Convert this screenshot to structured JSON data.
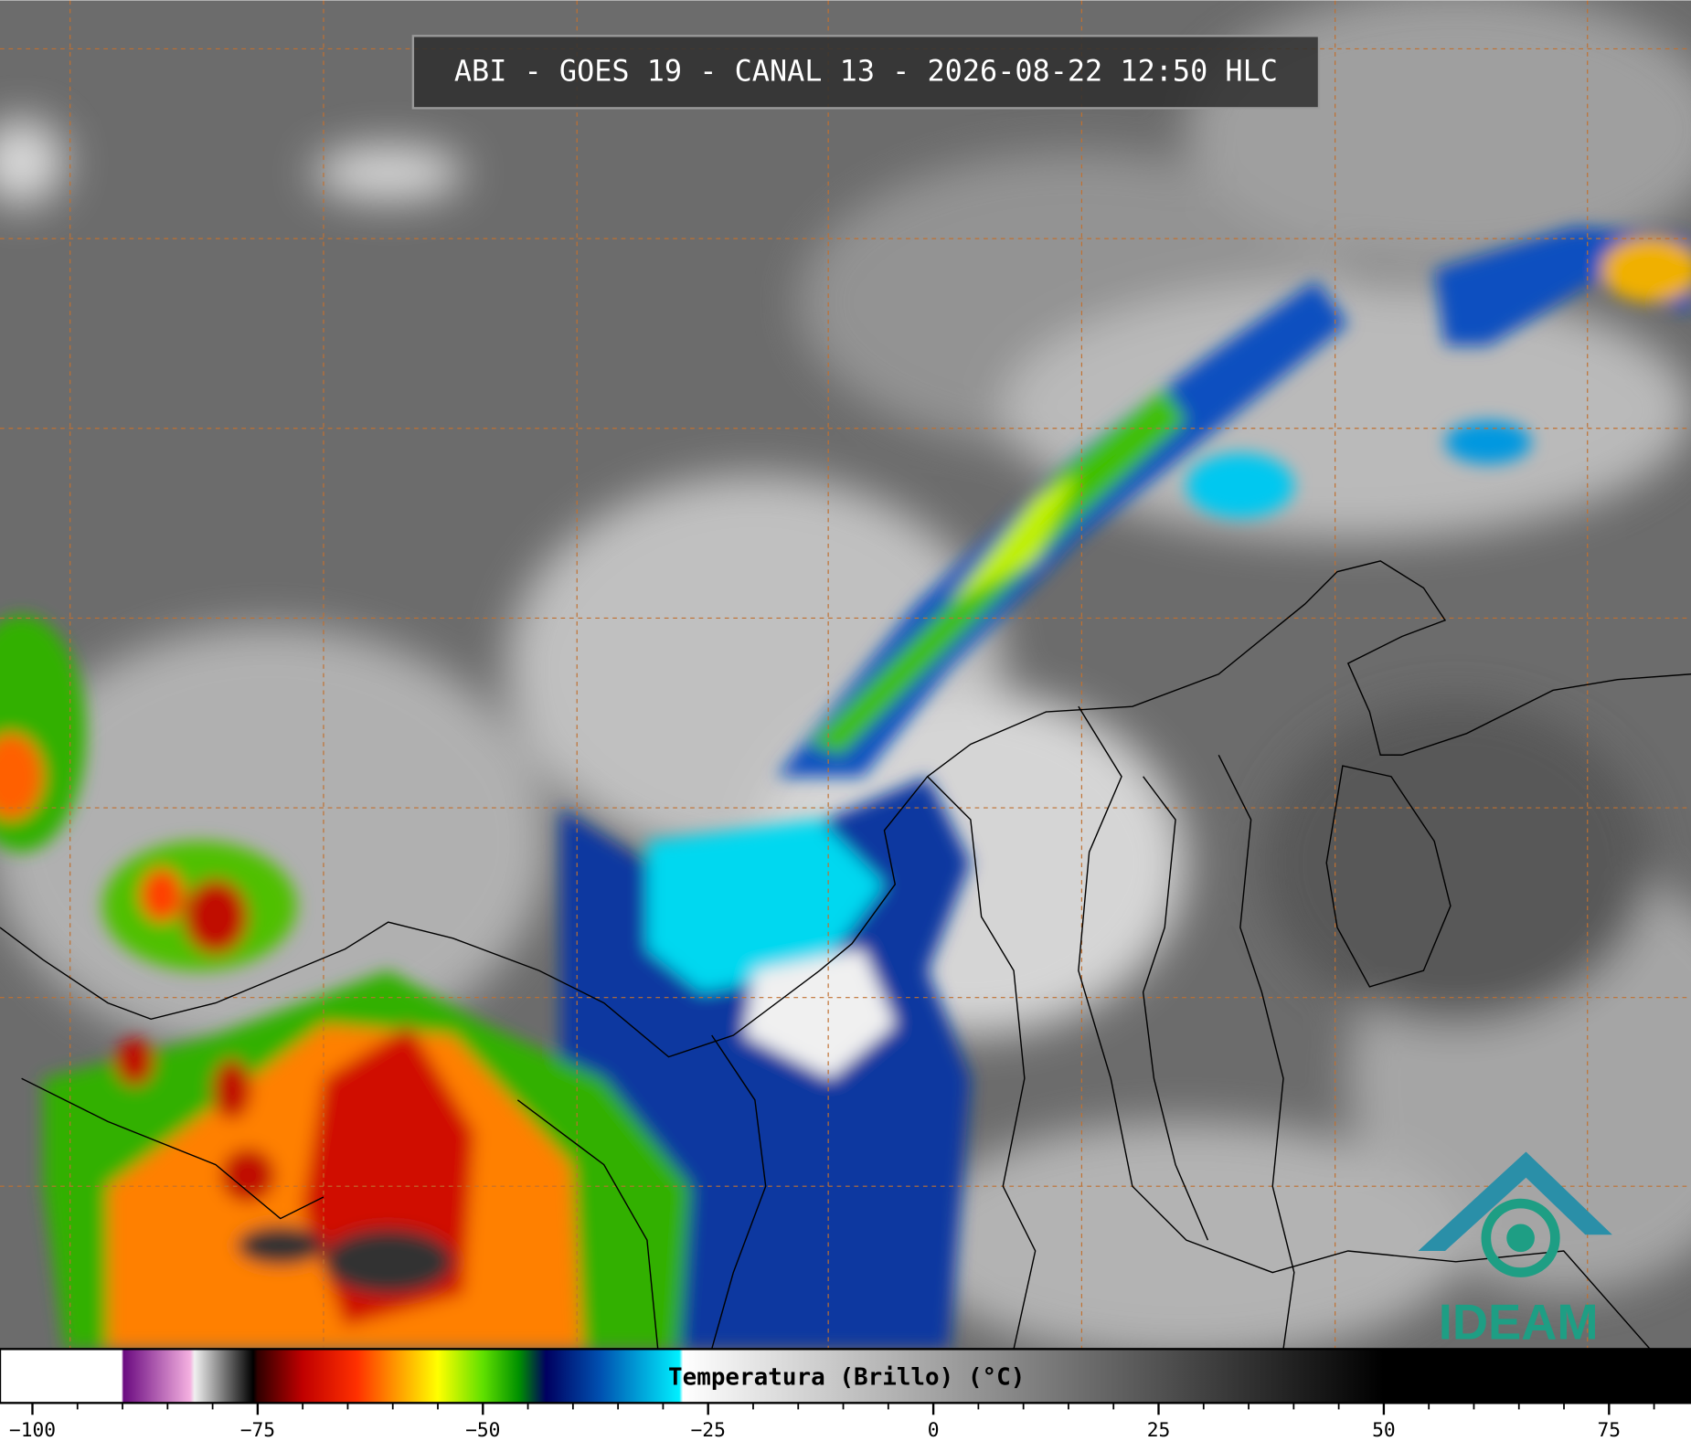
{
  "header": {
    "title": "ABI - GOES 19 - CANAL 13 - 2026-08-22 12:50 HLC"
  },
  "colorbar": {
    "label": "Temperatura (Brillo) (°C)",
    "lim": [
      -103.6,
      84.1
    ],
    "ticks": [
      {
        "value": -100,
        "label": "−100"
      },
      {
        "value": -75,
        "label": "−75"
      },
      {
        "value": -50,
        "label": "−50"
      },
      {
        "value": -25,
        "label": "−25"
      },
      0,
      25,
      50,
      75
    ],
    "minor_ticks": [
      -95,
      -90,
      -85,
      -80,
      -70,
      -65,
      -60,
      -55,
      -45,
      -40,
      -35,
      -30,
      -20,
      -15,
      -10,
      -5,
      5,
      10,
      15,
      20,
      30,
      35,
      40,
      45,
      55,
      60,
      65,
      70,
      80
    ],
    "stops": [
      {
        "value": -103.6,
        "color": "#ffffff"
      },
      {
        "value": -90.1,
        "color": "#ffffff"
      },
      {
        "value": -89.9,
        "color": "#6a0a80"
      },
      {
        "value": -82.5,
        "color": "#f4b0e0"
      },
      {
        "value": -82,
        "color": "#f0f0f0"
      },
      {
        "value": -75.5,
        "color": "#000000"
      },
      {
        "value": -75,
        "color": "#300000"
      },
      {
        "value": -70,
        "color": "#c00000"
      },
      {
        "value": -64,
        "color": "#ff3000"
      },
      {
        "value": -60,
        "color": "#ff9000"
      },
      {
        "value": -55,
        "color": "#ffff00"
      },
      {
        "value": -50,
        "color": "#60e000"
      },
      {
        "value": -46,
        "color": "#009000"
      },
      {
        "value": -43,
        "color": "#000060"
      },
      {
        "value": -37,
        "color": "#0050b0"
      },
      {
        "value": -28.2,
        "color": "#00f0ff"
      },
      {
        "value": -27.8,
        "color": "#ffffff"
      },
      {
        "value": 50,
        "color": "#000000"
      },
      {
        "value": 84.1,
        "color": "#000000"
      }
    ]
  },
  "logo": {
    "text": "IDEAM"
  }
}
